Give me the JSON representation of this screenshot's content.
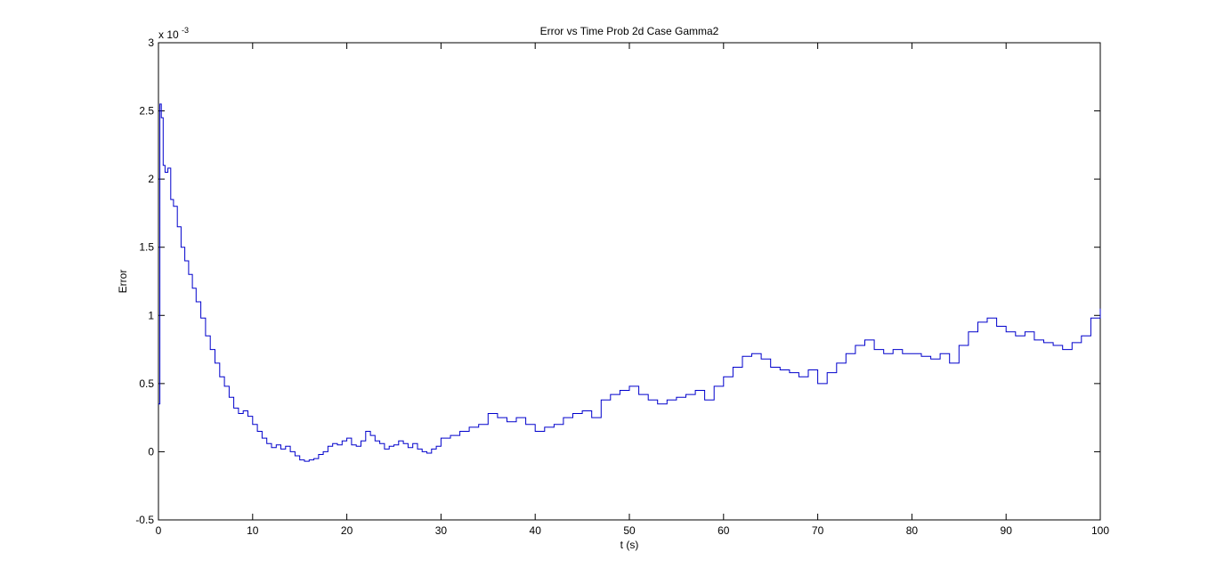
{
  "chart_data": {
    "type": "line",
    "title": "Error vs Time Prob 2d Case Gamma2",
    "xlabel": "t (s)",
    "ylabel": "Error",
    "exponent_label": "x 10",
    "exponent_power": "-3",
    "xlim": [
      0,
      100
    ],
    "ylim": [
      -0.5,
      3
    ],
    "xticks": [
      0,
      10,
      20,
      30,
      40,
      50,
      60,
      70,
      80,
      90,
      100
    ],
    "yticks": [
      -0.5,
      0,
      0.5,
      1,
      1.5,
      2,
      2.5,
      3
    ],
    "xtick_labels": [
      "0",
      "10",
      "20",
      "30",
      "40",
      "50",
      "60",
      "70",
      "80",
      "90",
      "100"
    ],
    "ytick_labels": [
      "-0.5",
      "0",
      "0.5",
      "1",
      "1.5",
      "2",
      "2.5",
      "3"
    ],
    "grid": false,
    "series": [
      {
        "color": "#0000cc",
        "x": [
          0,
          0.15,
          0.3,
          0.5,
          0.7,
          1.0,
          1.3,
          1.6,
          2.0,
          2.4,
          2.8,
          3.2,
          3.6,
          4.0,
          4.5,
          5.0,
          5.5,
          6.0,
          6.5,
          7.0,
          7.5,
          8.0,
          8.5,
          9.0,
          9.5,
          10.0,
          10.5,
          11.0,
          11.5,
          12.0,
          12.5,
          13.0,
          13.5,
          14.0,
          14.5,
          15.0,
          15.5,
          16.0,
          16.5,
          17.0,
          17.5,
          18.0,
          18.5,
          19.0,
          19.5,
          20.0,
          20.5,
          21.0,
          21.5,
          22.0,
          22.5,
          23.0,
          23.5,
          24.0,
          24.5,
          25.0,
          25.5,
          26.0,
          26.5,
          27.0,
          27.5,
          28.0,
          28.5,
          29.0,
          29.5,
          30.0,
          31.0,
          32.0,
          33.0,
          34.0,
          35.0,
          36.0,
          37.0,
          38.0,
          39.0,
          40.0,
          41.0,
          42.0,
          43.0,
          44.0,
          45.0,
          46.0,
          47.0,
          48.0,
          49.0,
          50.0,
          51.0,
          52.0,
          53.0,
          54.0,
          55.0,
          56.0,
          57.0,
          58.0,
          59.0,
          60.0,
          61.0,
          62.0,
          63.0,
          64.0,
          65.0,
          66.0,
          67.0,
          68.0,
          69.0,
          70.0,
          71.0,
          72.0,
          73.0,
          74.0,
          75.0,
          76.0,
          77.0,
          78.0,
          79.0,
          80.0,
          81.0,
          82.0,
          83.0,
          84.0,
          85.0,
          86.0,
          87.0,
          88.0,
          89.0,
          90.0,
          91.0,
          92.0,
          93.0,
          94.0,
          95.0,
          96.0,
          97.0,
          98.0,
          99.0,
          100.0
        ],
        "y": [
          0.35,
          2.55,
          2.45,
          2.1,
          2.05,
          2.08,
          1.85,
          1.8,
          1.65,
          1.5,
          1.4,
          1.3,
          1.2,
          1.1,
          0.98,
          0.85,
          0.75,
          0.65,
          0.55,
          0.48,
          0.4,
          0.32,
          0.28,
          0.3,
          0.26,
          0.2,
          0.15,
          0.1,
          0.06,
          0.03,
          0.05,
          0.02,
          0.04,
          0.0,
          -0.03,
          -0.06,
          -0.07,
          -0.06,
          -0.05,
          -0.02,
          0.0,
          0.04,
          0.06,
          0.05,
          0.08,
          0.1,
          0.05,
          0.04,
          0.08,
          0.15,
          0.12,
          0.08,
          0.06,
          0.02,
          0.04,
          0.05,
          0.08,
          0.06,
          0.03,
          0.06,
          0.02,
          0.0,
          -0.01,
          0.02,
          0.04,
          0.1,
          0.12,
          0.15,
          0.18,
          0.2,
          0.28,
          0.25,
          0.22,
          0.25,
          0.2,
          0.15,
          0.18,
          0.2,
          0.25,
          0.28,
          0.3,
          0.25,
          0.38,
          0.42,
          0.45,
          0.48,
          0.42,
          0.38,
          0.35,
          0.38,
          0.4,
          0.42,
          0.45,
          0.38,
          0.48,
          0.55,
          0.62,
          0.7,
          0.72,
          0.68,
          0.62,
          0.6,
          0.58,
          0.55,
          0.6,
          0.5,
          0.58,
          0.65,
          0.72,
          0.78,
          0.82,
          0.75,
          0.72,
          0.75,
          0.72,
          0.72,
          0.7,
          0.68,
          0.72,
          0.65,
          0.78,
          0.88,
          0.95,
          0.98,
          0.92,
          0.88,
          0.85,
          0.88,
          0.82,
          0.8,
          0.78,
          0.75,
          0.8,
          0.85,
          0.98,
          1.05
        ]
      }
    ]
  }
}
